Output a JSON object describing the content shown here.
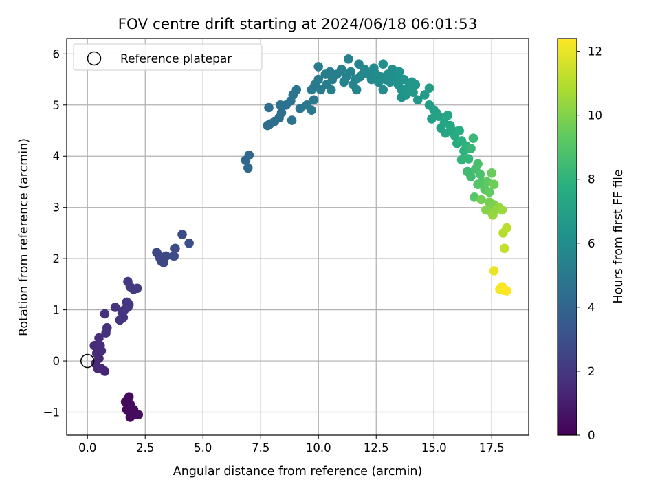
{
  "chart_data": {
    "type": "scatter",
    "title": "FOV centre drift starting at 2024/06/18 06:01:53",
    "xlabel": "Angular distance from reference (arcmin)",
    "ylabel": "Rotation from reference (arcmin)",
    "xlim": [
      -0.9,
      19.1
    ],
    "ylim": [
      -1.45,
      6.3
    ],
    "xticks": [
      0.0,
      2.5,
      5.0,
      7.5,
      10.0,
      12.5,
      15.0,
      17.5
    ],
    "xtick_labels": [
      "0.0",
      "2.5",
      "5.0",
      "7.5",
      "10.0",
      "12.5",
      "15.0",
      "17.5"
    ],
    "yticks": [
      -1,
      0,
      1,
      2,
      3,
      4,
      5,
      6
    ],
    "ytick_labels": [
      "−1",
      "0",
      "1",
      "2",
      "3",
      "4",
      "5",
      "6"
    ],
    "grid": true,
    "legend": {
      "location": "upper left",
      "entries": [
        "Reference platepar"
      ]
    },
    "reference_point": {
      "x": 0.0,
      "y": 0.0,
      "marker": "open-circle"
    },
    "colorbar": {
      "label": "Hours from first FF file",
      "colormap": "viridis",
      "range": [
        0,
        12.4
      ],
      "ticks": [
        0,
        2,
        4,
        6,
        8,
        10,
        12
      ],
      "tick_labels": [
        "0",
        "2",
        "4",
        "6",
        "8",
        "10",
        "12"
      ]
    },
    "points": [
      [
        1.8,
        -0.7,
        0.3
      ],
      [
        1.75,
        -0.8,
        0.3
      ],
      [
        1.7,
        -0.95,
        0.3
      ],
      [
        1.85,
        -0.85,
        0.35
      ],
      [
        1.9,
        -1.0,
        0.35
      ],
      [
        2.0,
        -1.05,
        0.4
      ],
      [
        1.85,
        -1.1,
        0.4
      ],
      [
        2.2,
        -1.05,
        0.45
      ],
      [
        1.65,
        -0.8,
        0.3
      ],
      [
        2.0,
        -0.95,
        0.4
      ],
      [
        0.75,
        -0.2,
        1.2
      ],
      [
        0.6,
        -0.15,
        1.3
      ],
      [
        0.5,
        0.05,
        1.3
      ],
      [
        0.35,
        -0.05,
        1.4
      ],
      [
        0.45,
        -0.15,
        1.4
      ],
      [
        0.4,
        0.15,
        1.5
      ],
      [
        0.3,
        0.3,
        1.5
      ],
      [
        0.55,
        0.3,
        1.55
      ],
      [
        0.5,
        0.45,
        1.6
      ],
      [
        0.6,
        0.2,
        1.5
      ],
      [
        0.8,
        0.55,
        1.7
      ],
      [
        0.85,
        0.65,
        1.7
      ],
      [
        0.75,
        0.92,
        1.75
      ],
      [
        1.2,
        1.05,
        1.8
      ],
      [
        1.4,
        0.8,
        1.8
      ],
      [
        1.55,
        0.85,
        1.85
      ],
      [
        1.6,
        1.0,
        1.9
      ],
      [
        1.5,
        0.95,
        1.9
      ],
      [
        1.75,
        1.05,
        1.95
      ],
      [
        1.8,
        1.1,
        2.0
      ],
      [
        1.7,
        1.15,
        1.95
      ],
      [
        1.85,
        1.45,
        2.0
      ],
      [
        1.75,
        1.55,
        2.0
      ],
      [
        2.0,
        1.4,
        2.1
      ],
      [
        2.15,
        1.42,
        2.1
      ],
      [
        3.0,
        2.12,
        2.6
      ],
      [
        3.1,
        2.05,
        2.65
      ],
      [
        3.2,
        1.95,
        2.65
      ],
      [
        3.3,
        1.92,
        2.7
      ],
      [
        3.4,
        2.05,
        2.7
      ],
      [
        3.15,
        2.0,
        2.65
      ],
      [
        3.8,
        2.2,
        2.8
      ],
      [
        3.75,
        2.05,
        2.8
      ],
      [
        4.1,
        2.47,
        2.85
      ],
      [
        4.4,
        2.3,
        2.9
      ],
      [
        6.85,
        3.92,
        4.1
      ],
      [
        7.0,
        4.02,
        4.15
      ],
      [
        6.95,
        3.77,
        4.15
      ],
      [
        7.8,
        4.6,
        4.4
      ],
      [
        7.9,
        4.63,
        4.4
      ],
      [
        8.1,
        4.68,
        4.45
      ],
      [
        7.85,
        4.95,
        4.45
      ],
      [
        8.3,
        4.75,
        4.55
      ],
      [
        8.4,
        4.85,
        4.55
      ],
      [
        8.35,
        5.0,
        4.6
      ],
      [
        8.6,
        5.0,
        4.65
      ],
      [
        8.8,
        5.08,
        4.7
      ],
      [
        8.85,
        4.7,
        4.7
      ],
      [
        8.9,
        5.2,
        4.75
      ],
      [
        9.05,
        5.3,
        4.8
      ],
      [
        9.2,
        4.93,
        4.8
      ],
      [
        9.5,
        5.0,
        4.9
      ],
      [
        9.7,
        4.9,
        5.0
      ],
      [
        9.8,
        5.1,
        5.0
      ],
      [
        9.7,
        5.3,
        5.05
      ],
      [
        9.85,
        5.4,
        5.05
      ],
      [
        10.0,
        5.5,
        5.1
      ],
      [
        10.1,
        5.3,
        5.1
      ],
      [
        10.0,
        5.75,
        5.15
      ],
      [
        10.3,
        5.6,
        5.2
      ],
      [
        10.5,
        5.65,
        5.25
      ],
      [
        10.35,
        5.4,
        5.2
      ],
      [
        10.6,
        5.5,
        5.3
      ],
      [
        10.8,
        5.6,
        5.3
      ],
      [
        10.55,
        5.3,
        5.3
      ],
      [
        11.0,
        5.7,
        5.4
      ],
      [
        11.2,
        5.55,
        5.4
      ],
      [
        11.3,
        5.9,
        5.45
      ],
      [
        11.4,
        5.65,
        5.5
      ],
      [
        11.1,
        5.45,
        5.5
      ],
      [
        11.5,
        5.4,
        5.55
      ],
      [
        11.6,
        5.5,
        5.55
      ],
      [
        11.75,
        5.8,
        5.6
      ],
      [
        11.8,
        5.55,
        5.65
      ],
      [
        11.65,
        5.3,
        5.6
      ],
      [
        11.9,
        5.6,
        5.7
      ],
      [
        12.0,
        5.7,
        5.75
      ],
      [
        12.2,
        5.6,
        5.8
      ],
      [
        12.3,
        5.5,
        5.8
      ],
      [
        12.4,
        5.72,
        5.85
      ],
      [
        12.5,
        5.6,
        5.9
      ],
      [
        12.6,
        5.45,
        5.9
      ],
      [
        12.7,
        5.55,
        5.95
      ],
      [
        12.8,
        5.8,
        6.0
      ],
      [
        12.9,
        5.5,
        6.0
      ],
      [
        12.8,
        5.3,
        6.0
      ],
      [
        13.0,
        5.6,
        6.1
      ],
      [
        13.1,
        5.45,
        6.1
      ],
      [
        13.2,
        5.7,
        6.15
      ],
      [
        13.35,
        5.55,
        6.2
      ],
      [
        13.45,
        5.4,
        6.2
      ],
      [
        13.5,
        5.65,
        6.25
      ],
      [
        13.6,
        5.3,
        6.3
      ],
      [
        13.6,
        5.15,
        6.3
      ],
      [
        13.7,
        5.5,
        6.35
      ],
      [
        13.8,
        5.2,
        6.4
      ],
      [
        13.9,
        5.35,
        6.45
      ],
      [
        14.05,
        5.45,
        6.5
      ],
      [
        14.2,
        5.4,
        6.55
      ],
      [
        14.1,
        5.25,
        6.55
      ],
      [
        14.3,
        5.1,
        6.6
      ],
      [
        14.6,
        5.2,
        6.75
      ],
      [
        14.8,
        5.33,
        6.8
      ],
      [
        14.8,
        5.0,
        6.85
      ],
      [
        15.0,
        4.9,
        6.9
      ],
      [
        14.9,
        4.73,
        6.9
      ],
      [
        15.1,
        4.85,
        7.0
      ],
      [
        15.2,
        4.78,
        7.05
      ],
      [
        15.3,
        4.55,
        7.1
      ],
      [
        15.45,
        4.65,
        7.15
      ],
      [
        15.5,
        4.45,
        7.2
      ],
      [
        15.6,
        4.8,
        7.3
      ],
      [
        15.7,
        4.6,
        7.35
      ],
      [
        15.8,
        4.5,
        7.4
      ],
      [
        15.9,
        4.4,
        7.5
      ],
      [
        16.0,
        4.25,
        7.6
      ],
      [
        16.1,
        4.5,
        7.7
      ],
      [
        16.2,
        4.3,
        7.8
      ],
      [
        16.3,
        4.1,
        7.9
      ],
      [
        16.4,
        4.2,
        8.0
      ],
      [
        16.2,
        3.93,
        8.05
      ],
      [
        16.5,
        3.95,
        8.1
      ],
      [
        16.6,
        4.15,
        8.2
      ],
      [
        16.7,
        4.35,
        8.3
      ],
      [
        16.45,
        3.7,
        8.4
      ],
      [
        16.6,
        3.6,
        8.5
      ],
      [
        16.8,
        3.75,
        8.6
      ],
      [
        16.9,
        3.85,
        8.7
      ],
      [
        17.0,
        3.65,
        8.8
      ],
      [
        17.1,
        3.5,
        8.9
      ],
      [
        16.9,
        3.45,
        9.0
      ],
      [
        16.75,
        3.2,
        9.1
      ],
      [
        17.2,
        3.35,
        9.2
      ],
      [
        17.3,
        3.5,
        9.3
      ],
      [
        17.4,
        3.3,
        9.4
      ],
      [
        17.5,
        3.67,
        9.5
      ],
      [
        17.6,
        3.45,
        9.6
      ],
      [
        17.05,
        3.15,
        9.7
      ],
      [
        17.4,
        3.1,
        9.8
      ],
      [
        17.6,
        3.05,
        9.9
      ],
      [
        17.25,
        2.95,
        10.0
      ],
      [
        17.5,
        2.9,
        10.1
      ],
      [
        17.65,
        2.95,
        10.2
      ],
      [
        17.8,
        3.0,
        10.3
      ],
      [
        17.55,
        2.85,
        10.4
      ],
      [
        17.95,
        2.95,
        10.5
      ],
      [
        18.0,
        2.5,
        11.0
      ],
      [
        18.15,
        2.6,
        11.1
      ],
      [
        18.05,
        2.2,
        11.3
      ],
      [
        17.6,
        1.76,
        12.0
      ],
      [
        17.85,
        1.4,
        12.2
      ],
      [
        17.95,
        1.45,
        12.3
      ],
      [
        18.05,
        1.38,
        12.3
      ],
      [
        18.15,
        1.37,
        12.4
      ]
    ]
  }
}
